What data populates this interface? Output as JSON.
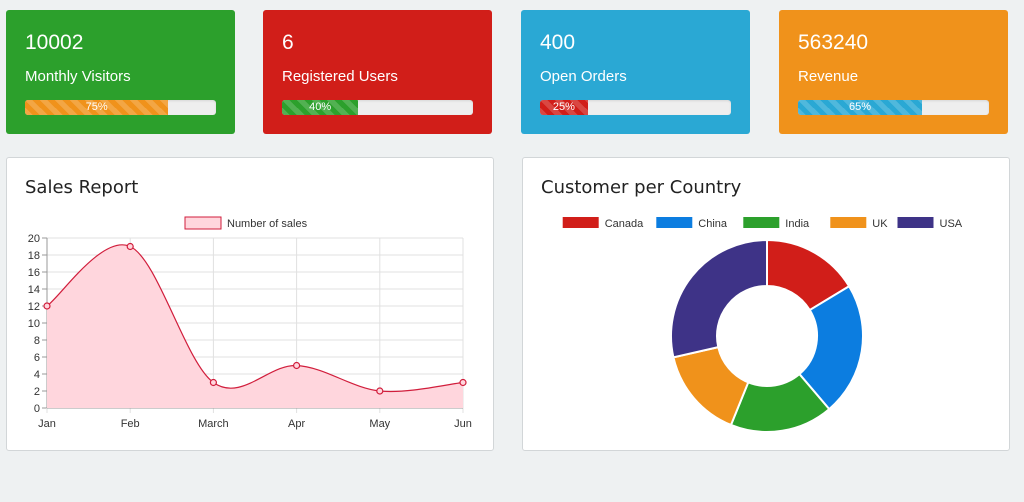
{
  "cards": [
    {
      "value": "10002",
      "label": "Monthly Visitors",
      "progress_text": "75%",
      "progress": 75,
      "bg": "#2ca02c",
      "fill": "#f0921b"
    },
    {
      "value": "6",
      "label": "Registered Users",
      "progress_text": "40%",
      "progress": 40,
      "bg": "#d11e19",
      "fill": "#2ca02c"
    },
    {
      "value": "400",
      "label": "Open Orders",
      "progress_text": "25%",
      "progress": 25,
      "bg": "#2aa8d4",
      "fill": "#d11e19"
    },
    {
      "value": "563240",
      "label": "Revenue",
      "progress_text": "65%",
      "progress": 65,
      "bg": "#f0921b",
      "fill": "#2aa8d4"
    }
  ],
  "sales_panel": {
    "title": "Sales Report"
  },
  "country_panel": {
    "title": "Customer per Country"
  },
  "chart_data": [
    {
      "type": "line",
      "title": "Sales Report",
      "categories": [
        "Jan",
        "Feb",
        "March",
        "Apr",
        "May",
        "Jun"
      ],
      "series": [
        {
          "name": "Number of sales",
          "values": [
            12,
            19,
            3,
            5,
            2,
            3
          ],
          "color": "#d11e3c",
          "fill": "#ffd6dd"
        }
      ],
      "ylim": [
        0,
        20
      ],
      "yticks": [
        0,
        2,
        4,
        6,
        8,
        10,
        12,
        14,
        16,
        18,
        20
      ],
      "grid": true,
      "legend": "top",
      "smooth": true
    },
    {
      "type": "pie",
      "title": "Customer per Country",
      "donut": true,
      "labels": [
        "Canada",
        "China",
        "India",
        "UK",
        "USA"
      ],
      "values": [
        16,
        22,
        17,
        15,
        28
      ],
      "colors": [
        "#d11e19",
        "#0c7de0",
        "#2ca02c",
        "#f0921b",
        "#3e3387"
      ],
      "legend": "top"
    }
  ]
}
